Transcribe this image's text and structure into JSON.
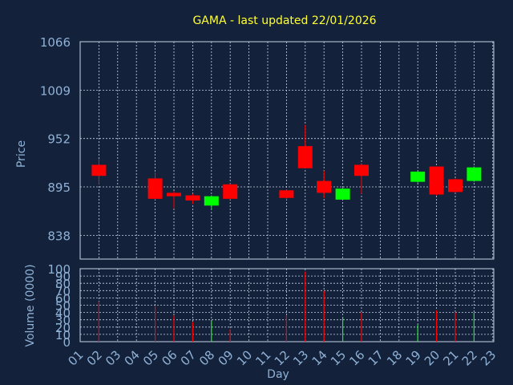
{
  "chart_data": [
    {
      "type": "candlestick",
      "title": "GAMA - last updated 22/01/2026",
      "xlabel": "",
      "ylabel": "Price",
      "ylim": [
        810,
        1066
      ],
      "y_ticks": [
        "838",
        "895",
        "952",
        "1009",
        "1066"
      ],
      "grid": true,
      "colors": {
        "up": "#00ff00",
        "down": "#ff0000",
        "grid": "#c8d2e6",
        "background": "#13223a",
        "text": "#8fb1d6",
        "title": "#ffff33"
      },
      "candles": [
        {
          "day": "02",
          "open": 921,
          "high": 928,
          "low": 898,
          "close": 908
        },
        {
          "day": "05",
          "open": 905,
          "high": 912,
          "low": 880,
          "close": 881
        },
        {
          "day": "06",
          "open": 888,
          "high": 890,
          "low": 870,
          "close": 884
        },
        {
          "day": "07",
          "open": 885,
          "high": 887,
          "low": 875,
          "close": 879
        },
        {
          "day": "08",
          "open": 873,
          "high": 885,
          "low": 868,
          "close": 884
        },
        {
          "day": "09",
          "open": 898,
          "high": 899,
          "low": 880,
          "close": 881
        },
        {
          "day": "12",
          "open": 891,
          "high": 892,
          "low": 880,
          "close": 882
        },
        {
          "day": "13",
          "open": 943,
          "high": 968,
          "low": 917,
          "close": 917
        },
        {
          "day": "14",
          "open": 902,
          "high": 914,
          "low": 882,
          "close": 888
        },
        {
          "day": "15",
          "open": 880,
          "high": 895,
          "low": 880,
          "close": 893
        },
        {
          "day": "16",
          "open": 921,
          "high": 922,
          "low": 887,
          "close": 908
        },
        {
          "day": "19",
          "open": 901,
          "high": 913,
          "low": 900,
          "close": 913
        },
        {
          "day": "20",
          "open": 919,
          "high": 919,
          "low": 885,
          "close": 886
        },
        {
          "day": "21",
          "open": 904,
          "high": 905,
          "low": 888,
          "close": 889
        },
        {
          "day": "22",
          "open": 902,
          "high": 919,
          "low": 901,
          "close": 918
        }
      ]
    },
    {
      "type": "bar",
      "title": "",
      "xlabel": "Day",
      "ylabel": "Volume (0000)",
      "ylim": [
        0,
        100
      ],
      "y_ticks": [
        "0",
        "10",
        "20",
        "30",
        "40",
        "50",
        "60",
        "70",
        "80",
        "90",
        "100"
      ],
      "categories": [
        "01",
        "02",
        "03",
        "04",
        "05",
        "06",
        "07",
        "08",
        "09",
        "10",
        "11",
        "12",
        "13",
        "14",
        "15",
        "16",
        "17",
        "18",
        "19",
        "20",
        "21",
        "22",
        "23"
      ],
      "values": [
        0,
        55,
        0,
        0,
        49,
        36,
        27,
        29,
        17,
        0,
        0,
        36,
        96,
        70,
        34,
        40,
        0,
        0,
        23,
        43,
        40,
        40,
        0
      ],
      "bar_colors": [
        "",
        "#ff0000",
        "",
        "",
        "#ff0000",
        "#ff0000",
        "#ff0000",
        "#00ff00",
        "#ff0000",
        "",
        "",
        "#ff0000",
        "#ff0000",
        "#ff0000",
        "#00ff00",
        "#ff0000",
        "",
        "",
        "#00ff00",
        "#ff0000",
        "#ff0000",
        "#00ff00",
        ""
      ],
      "grid": true
    }
  ]
}
